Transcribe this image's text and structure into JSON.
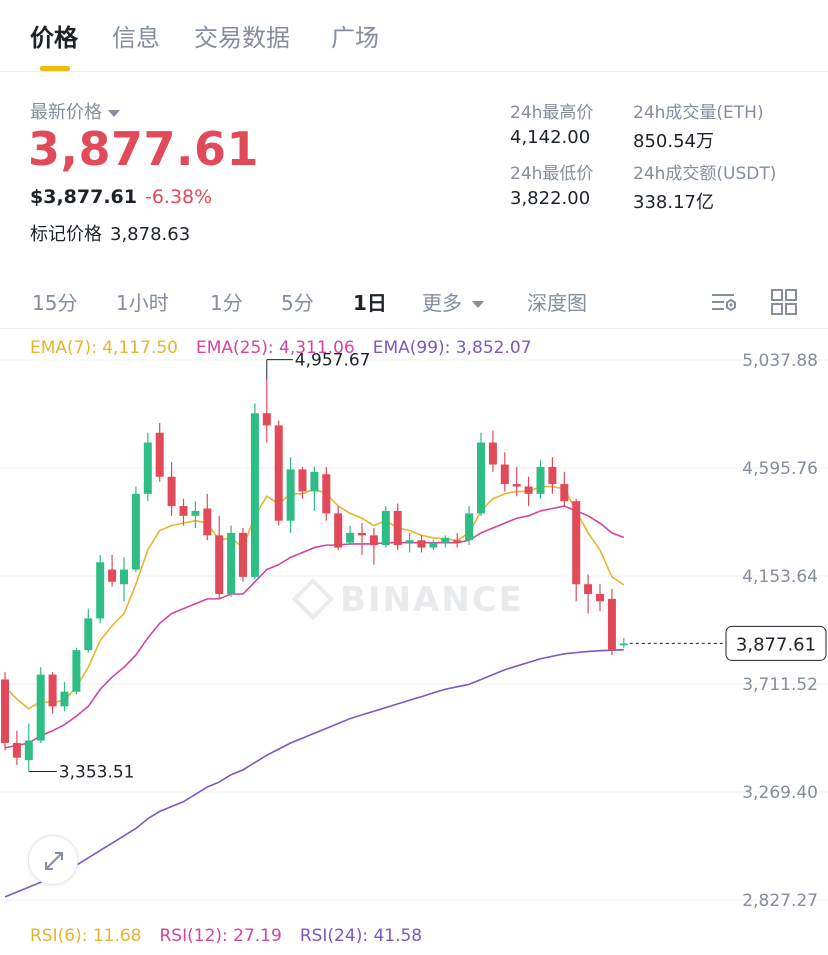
{
  "tabs": [
    {
      "label": "价格",
      "active": true
    },
    {
      "label": "信息",
      "active": false
    },
    {
      "label": "交易数据",
      "active": false
    },
    {
      "label": "广场",
      "active": false
    }
  ],
  "summary": {
    "latest_label": "最新价格",
    "price": "3,877.61",
    "usd_price": "$3,877.61",
    "change": "-6.38%",
    "mark_label": "标记价格",
    "mark_price": "3,878.63"
  },
  "stats": {
    "high_label": "24h最高价",
    "high": "4,142.00",
    "low_label": "24h最低价",
    "low": "3,822.00",
    "vol_label": "24h成交量(ETH)",
    "vol": "850.54万",
    "amt_label": "24h成交额(USDT)",
    "amt": "338.17亿"
  },
  "intervals": [
    {
      "label": "15分",
      "active": false
    },
    {
      "label": "1小时",
      "active": false
    },
    {
      "label": "1分",
      "active": false
    },
    {
      "label": "5分",
      "active": false
    },
    {
      "label": "1日",
      "active": true
    },
    {
      "label": "更多",
      "active": false
    },
    {
      "label": "深度图",
      "active": false
    }
  ],
  "icons": {
    "indicator": "chart-settings-icon",
    "layout": "grid-layout-icon",
    "expand": "expand-icon"
  },
  "colors": {
    "up": "#2ebd85",
    "down": "#e04a59",
    "ema7": "#e7b52d",
    "ema25": "#d4459b",
    "ema99": "#7e57c2",
    "accent": "#f0b90b"
  },
  "ema_legend": {
    "ema7": "EMA(7): 4,117.50",
    "ema25": "EMA(25): 4,311.06",
    "ema99": "EMA(99): 3,852.07"
  },
  "rsi_legend": {
    "rsi6": "RSI(6): 11.68",
    "rsi12": "RSI(12): 27.19",
    "rsi24": "RSI(24): 41.58"
  },
  "watermark": "BINANCE",
  "chart_data": {
    "type": "candlestick",
    "y_ticks": [
      "5,037.88",
      "4,595.76",
      "4,153.64",
      "3,711.52",
      "3,269.40",
      "2,827.27"
    ],
    "ylim": [
      2827.27,
      5037.88
    ],
    "current_price_label": "3,877.61",
    "current_price": 3877.61,
    "max_label": "4,957.67",
    "min_label": "3,353.51",
    "candles": [
      {
        "o": 3730,
        "h": 3760,
        "l": 3440,
        "c": 3470
      },
      {
        "o": 3470,
        "h": 3520,
        "l": 3380,
        "c": 3410
      },
      {
        "o": 3400,
        "h": 3550,
        "l": 3353.51,
        "c": 3480
      },
      {
        "o": 3480,
        "h": 3780,
        "l": 3470,
        "c": 3750
      },
      {
        "o": 3750,
        "h": 3760,
        "l": 3590,
        "c": 3620
      },
      {
        "o": 3620,
        "h": 3720,
        "l": 3600,
        "c": 3680
      },
      {
        "o": 3680,
        "h": 3860,
        "l": 3670,
        "c": 3850
      },
      {
        "o": 3850,
        "h": 4020,
        "l": 3840,
        "c": 3980
      },
      {
        "o": 3980,
        "h": 4240,
        "l": 3960,
        "c": 4210
      },
      {
        "o": 4180,
        "h": 4240,
        "l": 4110,
        "c": 4130
      },
      {
        "o": 4120,
        "h": 4230,
        "l": 4050,
        "c": 4180
      },
      {
        "o": 4180,
        "h": 4520,
        "l": 4170,
        "c": 4490
      },
      {
        "o": 4490,
        "h": 4740,
        "l": 4460,
        "c": 4700
      },
      {
        "o": 4740,
        "h": 4780,
        "l": 4540,
        "c": 4560
      },
      {
        "o": 4560,
        "h": 4620,
        "l": 4400,
        "c": 4440
      },
      {
        "o": 4440,
        "h": 4470,
        "l": 4360,
        "c": 4400
      },
      {
        "o": 4400,
        "h": 4460,
        "l": 4350,
        "c": 4420
      },
      {
        "o": 4430,
        "h": 4490,
        "l": 4300,
        "c": 4320
      },
      {
        "o": 4320,
        "h": 4400,
        "l": 4060,
        "c": 4080
      },
      {
        "o": 4080,
        "h": 4360,
        "l": 4070,
        "c": 4330
      },
      {
        "o": 4330,
        "h": 4350,
        "l": 4130,
        "c": 4150
      },
      {
        "o": 4150,
        "h": 4860,
        "l": 4140,
        "c": 4820
      },
      {
        "o": 4820,
        "h": 4957.67,
        "l": 4700,
        "c": 4770
      },
      {
        "o": 4770,
        "h": 4790,
        "l": 4360,
        "c": 4380
      },
      {
        "o": 4380,
        "h": 4640,
        "l": 4330,
        "c": 4590
      },
      {
        "o": 4590,
        "h": 4600,
        "l": 4470,
        "c": 4500
      },
      {
        "o": 4500,
        "h": 4600,
        "l": 4420,
        "c": 4580
      },
      {
        "o": 4570,
        "h": 4600,
        "l": 4380,
        "c": 4410
      },
      {
        "o": 4410,
        "h": 4440,
        "l": 4260,
        "c": 4270
      },
      {
        "o": 4290,
        "h": 4360,
        "l": 4280,
        "c": 4330
      },
      {
        "o": 4330,
        "h": 4370,
        "l": 4240,
        "c": 4320
      },
      {
        "o": 4320,
        "h": 4350,
        "l": 4200,
        "c": 4280
      },
      {
        "o": 4280,
        "h": 4440,
        "l": 4270,
        "c": 4420
      },
      {
        "o": 4420,
        "h": 4450,
        "l": 4260,
        "c": 4280
      },
      {
        "o": 4290,
        "h": 4330,
        "l": 4250,
        "c": 4300
      },
      {
        "o": 4300,
        "h": 4320,
        "l": 4250,
        "c": 4270
      },
      {
        "o": 4270,
        "h": 4300,
        "l": 4260,
        "c": 4290
      },
      {
        "o": 4290,
        "h": 4320,
        "l": 4270,
        "c": 4310
      },
      {
        "o": 4300,
        "h": 4330,
        "l": 4270,
        "c": 4290
      },
      {
        "o": 4300,
        "h": 4440,
        "l": 4280,
        "c": 4410
      },
      {
        "o": 4410,
        "h": 4740,
        "l": 4400,
        "c": 4700
      },
      {
        "o": 4700,
        "h": 4750,
        "l": 4580,
        "c": 4610
      },
      {
        "o": 4610,
        "h": 4660,
        "l": 4500,
        "c": 4530
      },
      {
        "o": 4530,
        "h": 4600,
        "l": 4480,
        "c": 4520
      },
      {
        "o": 4520,
        "h": 4560,
        "l": 4440,
        "c": 4490
      },
      {
        "o": 4490,
        "h": 4630,
        "l": 4470,
        "c": 4600
      },
      {
        "o": 4600,
        "h": 4640,
        "l": 4490,
        "c": 4530
      },
      {
        "o": 4530,
        "h": 4580,
        "l": 4440,
        "c": 4460
      },
      {
        "o": 4460,
        "h": 4470,
        "l": 4050,
        "c": 4120
      },
      {
        "o": 4120,
        "h": 4160,
        "l": 4000,
        "c": 4080
      },
      {
        "o": 4080,
        "h": 4120,
        "l": 4010,
        "c": 4050
      },
      {
        "o": 4060,
        "h": 4100,
        "l": 3830,
        "c": 3850
      },
      {
        "o": 3870,
        "h": 3900,
        "l": 3860,
        "c": 3877.61
      }
    ],
    "ema7": [
      3700,
      3650,
      3610,
      3640,
      3635,
      3645,
      3700,
      3780,
      3890,
      3950,
      4000,
      4120,
      4260,
      4340,
      4360,
      4370,
      4380,
      4370,
      4300,
      4310,
      4270,
      4400,
      4480,
      4450,
      4490,
      4490,
      4510,
      4490,
      4440,
      4410,
      4390,
      4360,
      4380,
      4350,
      4340,
      4320,
      4310,
      4305,
      4300,
      4330,
      4420,
      4470,
      4490,
      4500,
      4500,
      4520,
      4520,
      4510,
      4420,
      4330,
      4260,
      4150,
      4117.5
    ],
    "ema25": [
      3450,
      3460,
      3470,
      3500,
      3520,
      3545,
      3580,
      3620,
      3690,
      3740,
      3780,
      3830,
      3900,
      3960,
      4000,
      4020,
      4040,
      4060,
      4060,
      4080,
      4080,
      4130,
      4180,
      4200,
      4230,
      4250,
      4270,
      4280,
      4280,
      4285,
      4285,
      4285,
      4290,
      4290,
      4290,
      4290,
      4290,
      4290,
      4290,
      4300,
      4330,
      4350,
      4370,
      4390,
      4400,
      4420,
      4430,
      4440,
      4420,
      4400,
      4370,
      4330,
      4311.06
    ],
    "ema99": [
      2840,
      2860,
      2880,
      2900,
      2920,
      2940,
      2970,
      3000,
      3030,
      3060,
      3090,
      3120,
      3160,
      3190,
      3210,
      3230,
      3260,
      3290,
      3310,
      3340,
      3360,
      3390,
      3420,
      3445,
      3470,
      3490,
      3510,
      3530,
      3550,
      3570,
      3585,
      3600,
      3615,
      3630,
      3645,
      3660,
      3675,
      3690,
      3700,
      3710,
      3730,
      3750,
      3770,
      3785,
      3800,
      3815,
      3825,
      3835,
      3840,
      3845,
      3848,
      3850,
      3852.07
    ]
  }
}
